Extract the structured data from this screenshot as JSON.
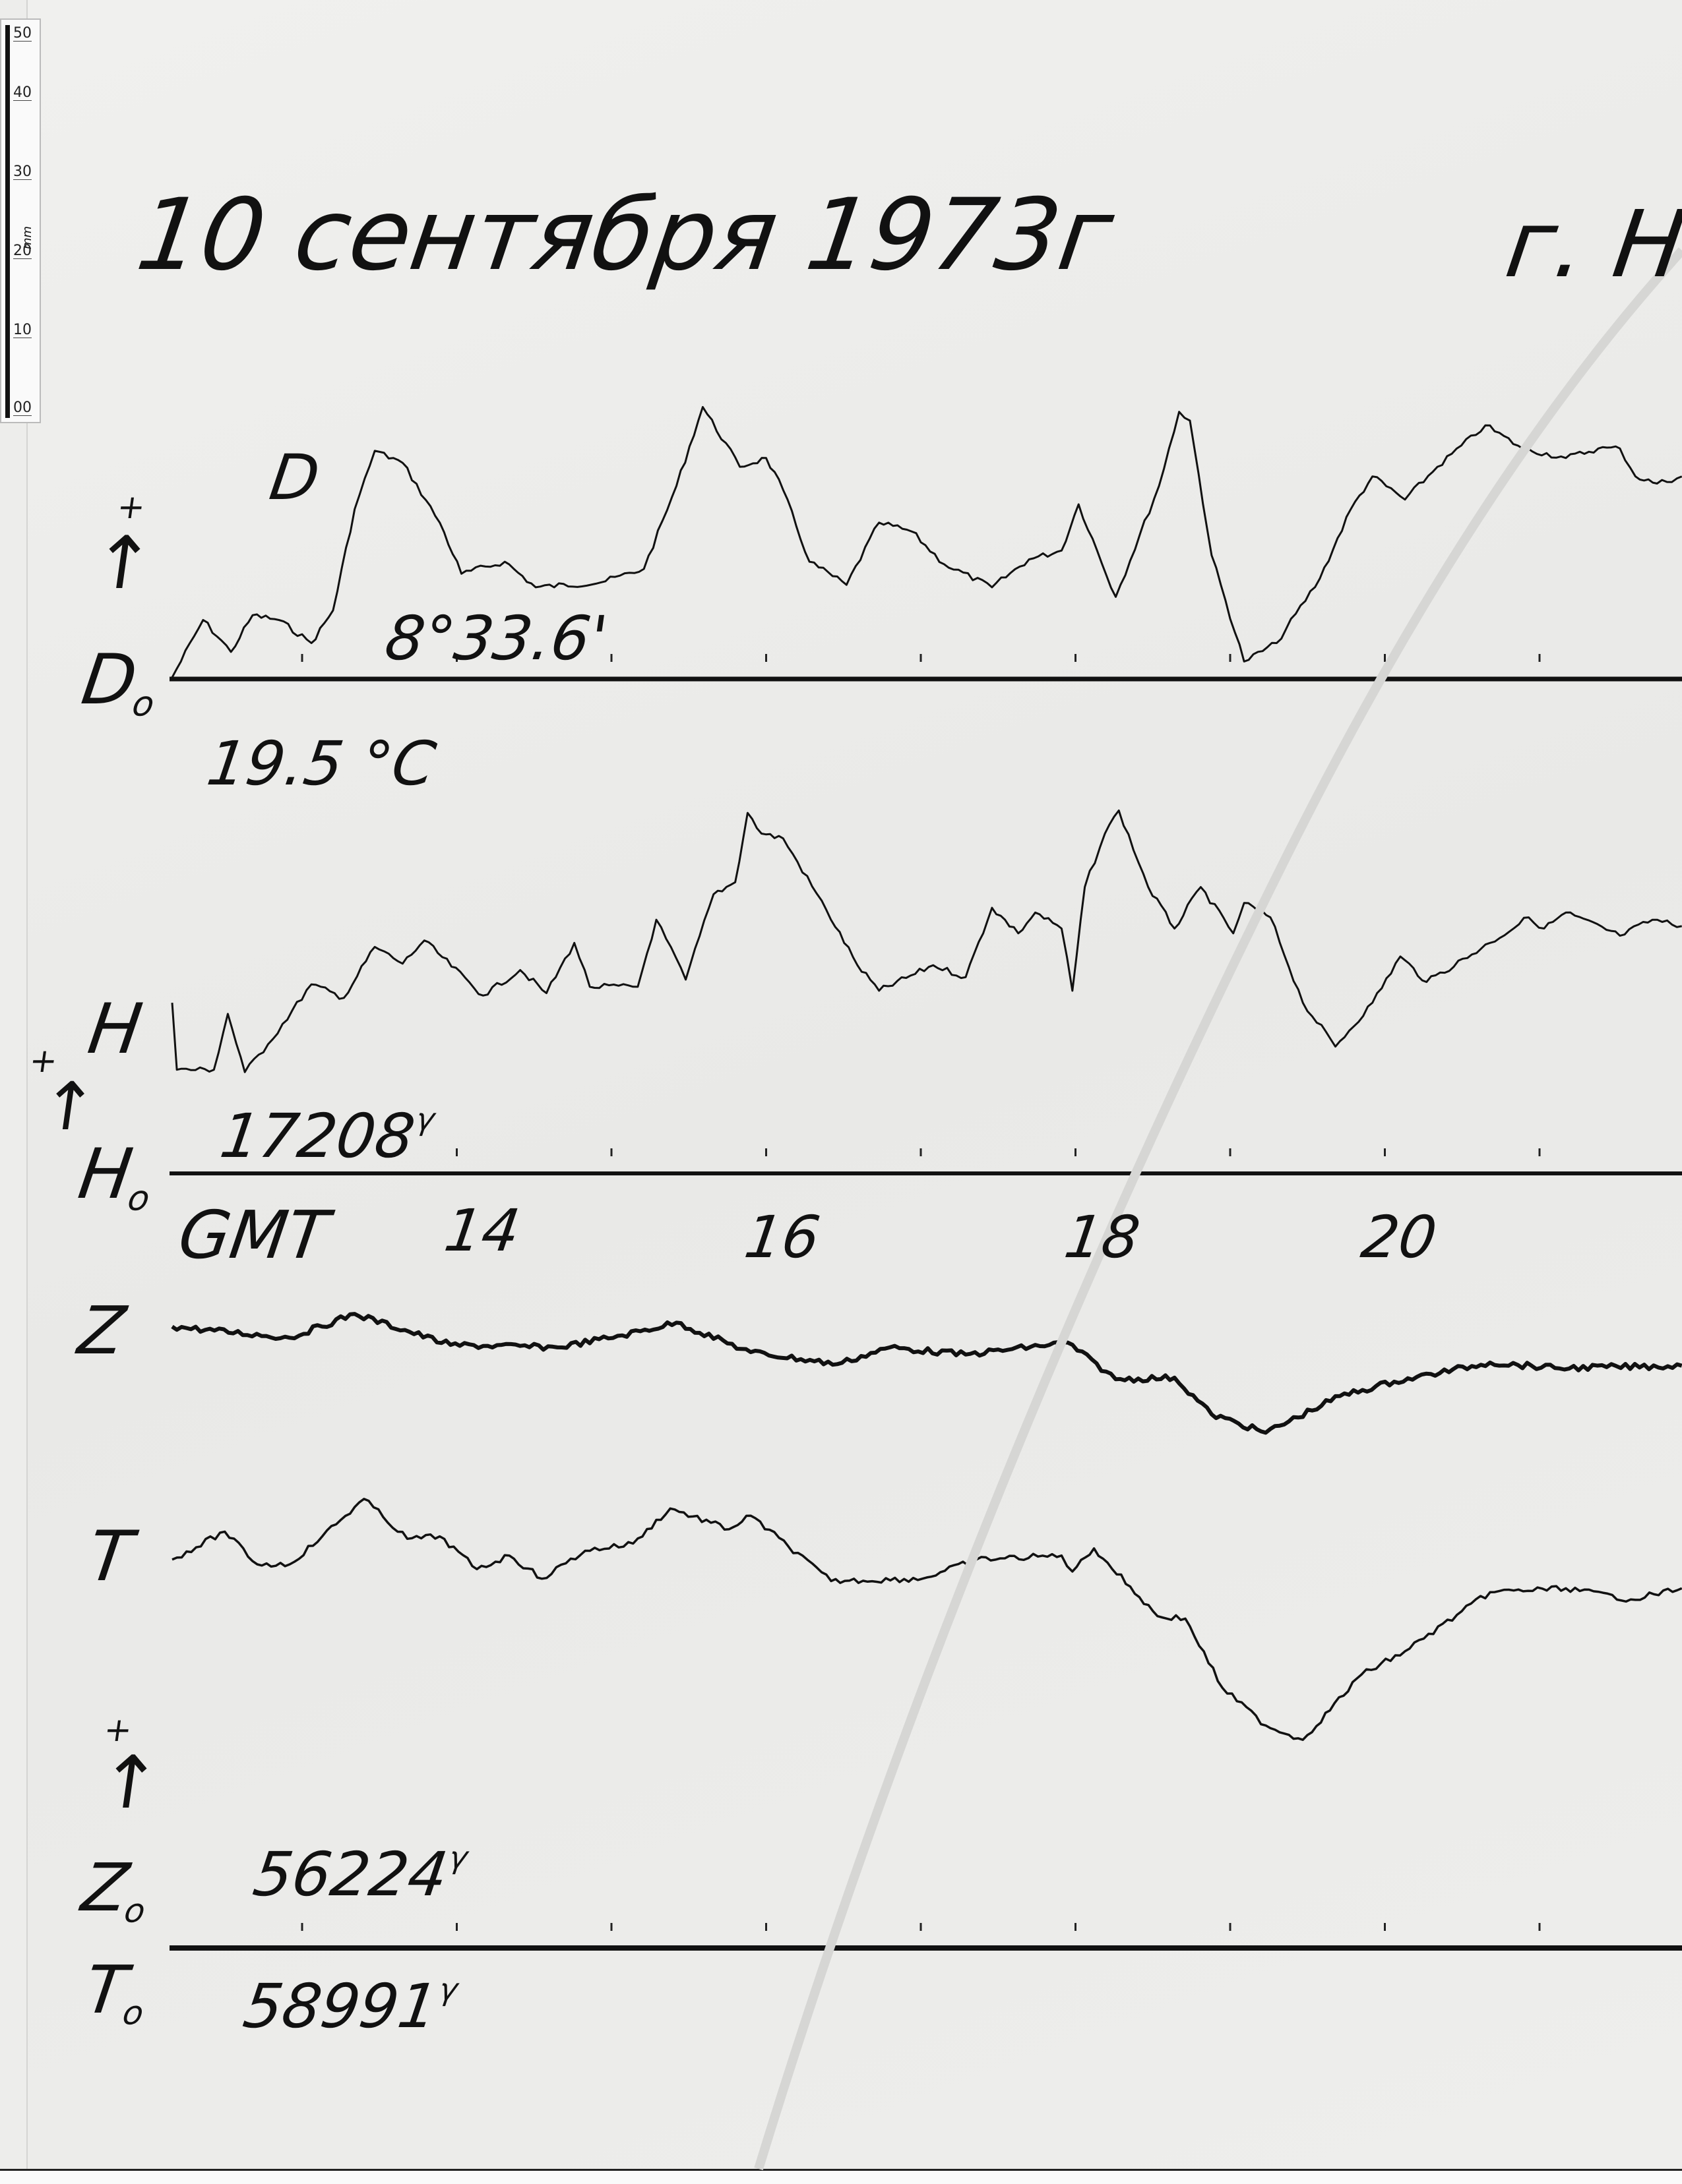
{
  "ruler": {
    "labels": [
      "50",
      "40",
      "30",
      "20",
      "10",
      "00"
    ],
    "unit": "mm"
  },
  "title": {
    "date": "10 сентября 1973г",
    "place": "г. Н"
  },
  "labels": {
    "D": "D",
    "D0": "D",
    "D0_sub": "o",
    "D0_value": "8°33.6'",
    "temperature": "19.5 °C",
    "H": "H",
    "H0": "H",
    "H0_sub": "o",
    "H0_value": "17208",
    "H0_unit": "γ",
    "GMT": "GMT",
    "Z": "Z",
    "T": "T",
    "Z0": "Z",
    "Z0_sub": "o",
    "Z0_value": "56224",
    "Z0_unit": "γ",
    "T0": "T",
    "T0_sub": "o",
    "T0_value": "58991",
    "T0_unit": "γ",
    "plus": "+",
    "arrow": "↑"
  },
  "chart_data": {
    "type": "line",
    "title": "10 сентября 1973г",
    "xlabel": "GMT",
    "x_unit": "hours",
    "x_tick_labels": [
      "14",
      "16",
      "18",
      "20"
    ],
    "x_ticks": [
      13,
      14,
      15,
      16,
      17,
      18,
      19,
      20,
      21
    ],
    "xlim": [
      12.16,
      21.92
    ],
    "y_unit": "mm above baseline (per ruler)",
    "grid": false,
    "baselines": {
      "D0": "8°33.6'",
      "H0": "17208γ",
      "Z0": "56224γ",
      "T0": "58991γ"
    },
    "series": [
      {
        "name": "D",
        "baseline": "D0",
        "color": "#111111",
        "points": [
          [
            12.16,
            0.2
          ],
          [
            12.36,
            7.4
          ],
          [
            12.54,
            3.4
          ],
          [
            12.68,
            8.0
          ],
          [
            12.85,
            7.4
          ],
          [
            13.06,
            4.5
          ],
          [
            13.2,
            8.6
          ],
          [
            13.34,
            21.3
          ],
          [
            13.47,
            28.6
          ],
          [
            13.65,
            27.1
          ],
          [
            13.89,
            19.6
          ],
          [
            14.03,
            13.2
          ],
          [
            14.31,
            14.7
          ],
          [
            14.51,
            11.5
          ],
          [
            14.93,
            12.1
          ],
          [
            15.21,
            13.8
          ],
          [
            15.42,
            24.2
          ],
          [
            15.59,
            34.1
          ],
          [
            15.83,
            26.6
          ],
          [
            16.0,
            27.7
          ],
          [
            16.11,
            23.7
          ],
          [
            16.28,
            14.7
          ],
          [
            16.52,
            11.8
          ],
          [
            16.73,
            19.6
          ],
          [
            16.94,
            18.5
          ],
          [
            17.15,
            14.4
          ],
          [
            17.46,
            11.5
          ],
          [
            17.7,
            15.0
          ],
          [
            17.91,
            16.1
          ],
          [
            18.02,
            21.9
          ],
          [
            18.26,
            10.3
          ],
          [
            18.54,
            24.2
          ],
          [
            18.67,
            33.5
          ],
          [
            18.74,
            32.4
          ],
          [
            18.88,
            15.5
          ],
          [
            19.09,
            2.2
          ],
          [
            19.3,
            4.5
          ],
          [
            19.58,
            12.6
          ],
          [
            19.78,
            21.3
          ],
          [
            19.92,
            25.4
          ],
          [
            20.13,
            22.5
          ],
          [
            20.34,
            26.6
          ],
          [
            20.65,
            31.8
          ],
          [
            20.89,
            28.9
          ],
          [
            21.17,
            27.7
          ],
          [
            21.38,
            28.9
          ],
          [
            21.52,
            28.9
          ],
          [
            21.62,
            25.4
          ],
          [
            21.76,
            24.5
          ],
          [
            21.92,
            25.4
          ]
        ]
      },
      {
        "name": "H",
        "baseline": "H0",
        "color": "#111111",
        "points": [
          [
            12.16,
            21.4
          ],
          [
            12.19,
            13.0
          ],
          [
            12.43,
            13.0
          ],
          [
            12.52,
            20.0
          ],
          [
            12.63,
            12.7
          ],
          [
            12.78,
            16.2
          ],
          [
            13.06,
            23.7
          ],
          [
            13.27,
            22.0
          ],
          [
            13.47,
            28.4
          ],
          [
            13.65,
            26.3
          ],
          [
            13.79,
            29.2
          ],
          [
            14.17,
            22.3
          ],
          [
            14.41,
            25.5
          ],
          [
            14.58,
            22.6
          ],
          [
            14.76,
            28.9
          ],
          [
            14.86,
            23.4
          ],
          [
            15.17,
            23.4
          ],
          [
            15.29,
            31.8
          ],
          [
            15.48,
            24.3
          ],
          [
            15.66,
            35.0
          ],
          [
            15.8,
            36.5
          ],
          [
            15.88,
            45.2
          ],
          [
            15.97,
            42.6
          ],
          [
            16.11,
            42.0
          ],
          [
            16.39,
            33.0
          ],
          [
            16.59,
            26.1
          ],
          [
            16.73,
            22.9
          ],
          [
            17.08,
            26.1
          ],
          [
            17.29,
            24.6
          ],
          [
            17.46,
            33.3
          ],
          [
            17.63,
            30.1
          ],
          [
            17.74,
            32.7
          ],
          [
            17.91,
            30.7
          ],
          [
            17.98,
            22.9
          ],
          [
            18.06,
            35.9
          ],
          [
            18.19,
            42.6
          ],
          [
            18.28,
            45.5
          ],
          [
            18.47,
            35.9
          ],
          [
            18.64,
            30.7
          ],
          [
            18.81,
            35.9
          ],
          [
            19.02,
            30.1
          ],
          [
            19.09,
            33.9
          ],
          [
            19.26,
            32.1
          ],
          [
            19.47,
            21.4
          ],
          [
            19.68,
            15.9
          ],
          [
            19.92,
            21.4
          ],
          [
            20.1,
            27.2
          ],
          [
            20.27,
            24.0
          ],
          [
            20.68,
            28.9
          ],
          [
            20.93,
            32.1
          ],
          [
            21.03,
            30.7
          ],
          [
            21.17,
            32.7
          ],
          [
            21.52,
            29.8
          ],
          [
            21.73,
            31.8
          ],
          [
            21.92,
            31.0
          ]
        ]
      },
      {
        "name": "Z",
        "baseline": "Z0",
        "color": "#111111",
        "points": [
          [
            12.16,
            77.9
          ],
          [
            12.92,
            76.5
          ],
          [
            13.34,
            79.5
          ],
          [
            13.96,
            75.6
          ],
          [
            14.65,
            75.3
          ],
          [
            15.07,
            76.8
          ],
          [
            15.42,
            78.4
          ],
          [
            15.9,
            74.7
          ],
          [
            16.46,
            73.2
          ],
          [
            16.8,
            75.3
          ],
          [
            17.29,
            74.4
          ],
          [
            17.95,
            75.9
          ],
          [
            18.26,
            71.3
          ],
          [
            18.64,
            71.5
          ],
          [
            18.88,
            66.9
          ],
          [
            19.23,
            64.6
          ],
          [
            19.71,
            69.2
          ],
          [
            20.06,
            71.0
          ],
          [
            20.68,
            73.4
          ],
          [
            21.1,
            72.7
          ],
          [
            21.92,
            73.0
          ]
        ]
      },
      {
        "name": "T",
        "baseline": "T0",
        "color": "#111111",
        "points": [
          [
            12.16,
            48.7
          ],
          [
            12.5,
            52.2
          ],
          [
            12.71,
            48.1
          ],
          [
            12.92,
            48.1
          ],
          [
            13.13,
            51.6
          ],
          [
            13.4,
            56.3
          ],
          [
            13.68,
            51.3
          ],
          [
            13.89,
            51.6
          ],
          [
            14.13,
            47.5
          ],
          [
            14.34,
            49.2
          ],
          [
            14.55,
            46.3
          ],
          [
            14.83,
            49.8
          ],
          [
            15.14,
            50.7
          ],
          [
            15.38,
            55.1
          ],
          [
            15.76,
            52.5
          ],
          [
            15.9,
            54.2
          ],
          [
            16.42,
            46.0
          ],
          [
            17.01,
            46.3
          ],
          [
            17.36,
            48.7
          ],
          [
            17.91,
            49.2
          ],
          [
            17.98,
            47.2
          ],
          [
            18.12,
            50.1
          ],
          [
            18.53,
            41.6
          ],
          [
            18.71,
            41.3
          ],
          [
            18.95,
            32.6
          ],
          [
            19.23,
            27.9
          ],
          [
            19.47,
            26.1
          ],
          [
            19.85,
            34.3
          ],
          [
            20.13,
            37.2
          ],
          [
            20.68,
            44.6
          ],
          [
            21.17,
            45.1
          ],
          [
            21.59,
            43.7
          ],
          [
            21.92,
            45.1
          ]
        ]
      }
    ]
  }
}
